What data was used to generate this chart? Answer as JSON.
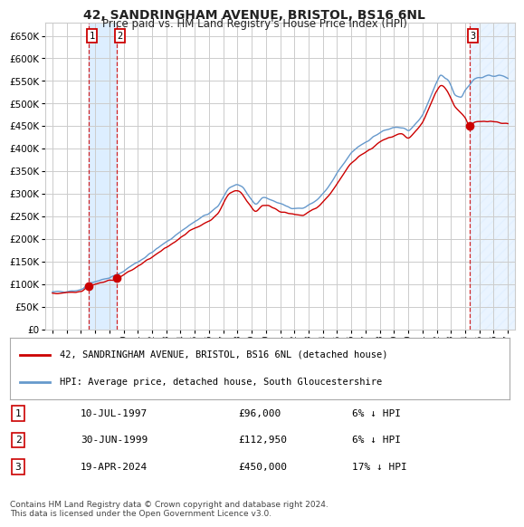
{
  "title": "42, SANDRINGHAM AVENUE, BRISTOL, BS16 6NL",
  "subtitle": "Price paid vs. HM Land Registry's House Price Index (HPI)",
  "legend_line1": "42, SANDRINGHAM AVENUE, BRISTOL, BS16 6NL (detached house)",
  "legend_line2": "HPI: Average price, detached house, South Gloucestershire",
  "footer": "Contains HM Land Registry data © Crown copyright and database right 2024.\nThis data is licensed under the Open Government Licence v3.0.",
  "transactions": [
    {
      "num": 1,
      "date": "10-JUL-1997",
      "price": "£96,000",
      "hpi_pct": "6% ↓ HPI",
      "year": 1997.53
    },
    {
      "num": 2,
      "date": "30-JUN-1999",
      "price": "£112,950",
      "hpi_pct": "6% ↓ HPI",
      "year": 1999.49
    },
    {
      "num": 3,
      "date": "19-APR-2024",
      "price": "£450,000",
      "hpi_pct": "17% ↓ HPI",
      "year": 2024.3
    }
  ],
  "ylim": [
    0,
    680000
  ],
  "yticks": [
    0,
    50000,
    100000,
    150000,
    200000,
    250000,
    300000,
    350000,
    400000,
    450000,
    500000,
    550000,
    600000,
    650000
  ],
  "xtick_years": [
    1995,
    1996,
    1997,
    1998,
    1999,
    2000,
    2001,
    2002,
    2003,
    2004,
    2005,
    2006,
    2007,
    2008,
    2009,
    2010,
    2011,
    2012,
    2013,
    2014,
    2015,
    2016,
    2017,
    2018,
    2019,
    2020,
    2021,
    2022,
    2023,
    2024,
    2025,
    2026,
    2027
  ],
  "xlim": [
    1994.5,
    2027.5
  ],
  "red_color": "#cc0000",
  "blue_color": "#6699cc",
  "bg_color": "#ffffff",
  "grid_color": "#cccccc",
  "shade_color": "#ddeeff",
  "hatch_color": "#aabbcc",
  "title_fontsize": 10,
  "subtitle_fontsize": 8.5
}
